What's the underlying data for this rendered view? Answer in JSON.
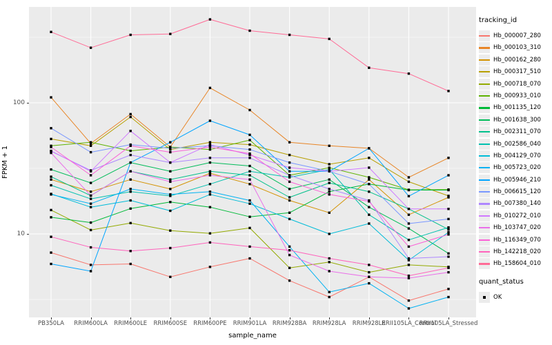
{
  "chart_data": {
    "type": "line",
    "title": "",
    "xlabel": "sample_name",
    "ylabel": "FPKM + 1",
    "x_type": "categorical",
    "y_scale": "log10",
    "ylim": [
      2.2,
      550
    ],
    "y_ticks": [
      100,
      10
    ],
    "y_tick_labels": [
      "100",
      "10"
    ],
    "y_minor_gridlines": [
      316.2,
      31.62,
      3.162
    ],
    "grid": true,
    "panel_bg": "#EBEBEB",
    "grid_color": "#FFFFFF",
    "point_marker": {
      "shape": "square",
      "color": "#000000"
    },
    "legend": {
      "title": "tracking_id",
      "position": "right"
    },
    "legend2": {
      "title": "quant_status",
      "items": [
        "OK"
      ]
    },
    "categories": [
      "PB350LA",
      "RRIM600LA",
      "RRIM600LE",
      "RRIM600SE",
      "RRIM600PE",
      "RRIM901LA",
      "RRIM928BA",
      "RRIM928LA",
      "RRIM928LE",
      "RRII105LA_Control",
      "RRII105LA_Stressed"
    ],
    "series": [
      {
        "name": "Hb_000007_280",
        "color": "#F8766D",
        "values": [
          7.2,
          5.8,
          5.9,
          4.7,
          5.6,
          6.5,
          4.4,
          3.3,
          4.7,
          3.1,
          3.8
        ]
      },
      {
        "name": "Hb_000103_310",
        "color": "#E88526",
        "values": [
          110,
          49,
          82,
          46,
          130,
          88,
          50,
          47,
          45,
          27,
          38
        ]
      },
      {
        "name": "Hb_000162_280",
        "color": "#D39200",
        "values": [
          26,
          21,
          26,
          22,
          29,
          24,
          18,
          14.5,
          26,
          14,
          19
        ]
      },
      {
        "name": "Hb_000317_510",
        "color": "#B79F00",
        "values": [
          53,
          47,
          78,
          44,
          50,
          48,
          40,
          34,
          38,
          25,
          19.5
        ]
      },
      {
        "name": "Hb_000718_070",
        "color": "#93AA00",
        "values": [
          15.2,
          10.7,
          12.1,
          10.6,
          10.1,
          11.1,
          5.5,
          6.1,
          5.1,
          5.8,
          5.6
        ]
      },
      {
        "name": "Hb_000933_010",
        "color": "#5EB300",
        "values": [
          47,
          50,
          43,
          46,
          44,
          52,
          28,
          32,
          27,
          21.7,
          21.8
        ]
      },
      {
        "name": "Hb_001135_120",
        "color": "#00BA38",
        "values": [
          13.4,
          12.2,
          15.6,
          17.5,
          16,
          13.5,
          14.5,
          21,
          24,
          21.6,
          21.6
        ]
      },
      {
        "name": "Hb_001638_300",
        "color": "#00BC59",
        "values": [
          31,
          24.5,
          35,
          30,
          35,
          33,
          22,
          26,
          16,
          11,
          7.1
        ]
      },
      {
        "name": "Hb_002311_070",
        "color": "#00C08B",
        "values": [
          27.3,
          19.6,
          30,
          26,
          30,
          28,
          19,
          24.5,
          21,
          15.5,
          10.8
        ]
      },
      {
        "name": "Hb_002586_040",
        "color": "#00C0AF",
        "values": [
          23.5,
          18.5,
          21,
          19.5,
          24,
          30,
          27,
          31,
          14,
          9,
          11.2
        ]
      },
      {
        "name": "Hb_004129_070",
        "color": "#00BCD8",
        "values": [
          20.2,
          16,
          18,
          15,
          20,
          17,
          13,
          10,
          12,
          6.3,
          10.3
        ]
      },
      {
        "name": "Hb_005723_020",
        "color": "#00B2F3",
        "values": [
          20,
          17,
          22,
          20,
          21,
          18,
          8,
          3.6,
          4.2,
          2.7,
          3.3
        ]
      },
      {
        "name": "Hb_005946_210",
        "color": "#00A5FF",
        "values": [
          5.9,
          5.2,
          35,
          50,
          73,
          57,
          30,
          30,
          45,
          19.4,
          28
        ]
      },
      {
        "name": "Hb_006615_120",
        "color": "#7997FF",
        "values": [
          64,
          42,
          48,
          45,
          47,
          44,
          35,
          30,
          24,
          12,
          13
        ]
      },
      {
        "name": "Hb_007380_140",
        "color": "#AE87FF",
        "values": [
          42.7,
          30.5,
          40,
          35,
          38,
          38,
          28,
          22,
          18,
          6.5,
          6.7
        ]
      },
      {
        "name": "Hb_010272_010",
        "color": "#CF78FF",
        "values": [
          43,
          30,
          61,
          35,
          48,
          40,
          32,
          30,
          32,
          15.5,
          15.5
        ]
      },
      {
        "name": "Hb_103747_020",
        "color": "#EA6FE9",
        "values": [
          41.5,
          19.6,
          30,
          25,
          28,
          26,
          6.9,
          5.2,
          4.7,
          4.6,
          5.1
        ]
      },
      {
        "name": "Hb_116349_070",
        "color": "#FB61D7",
        "values": [
          46,
          28,
          47,
          42,
          46,
          41,
          25,
          20,
          17.7,
          8,
          9.9
        ]
      },
      {
        "name": "Hb_142218_020",
        "color": "#FF62BC",
        "values": [
          9.5,
          7.9,
          7.4,
          7.8,
          8.6,
          8,
          7.5,
          6.5,
          5.8,
          4.8,
          5.5
        ]
      },
      {
        "name": "Hb_158604_010",
        "color": "#FF6B96",
        "values": [
          347,
          263,
          330,
          335,
          433,
          355,
          330,
          307,
          185,
          167,
          123
        ]
      }
    ]
  }
}
